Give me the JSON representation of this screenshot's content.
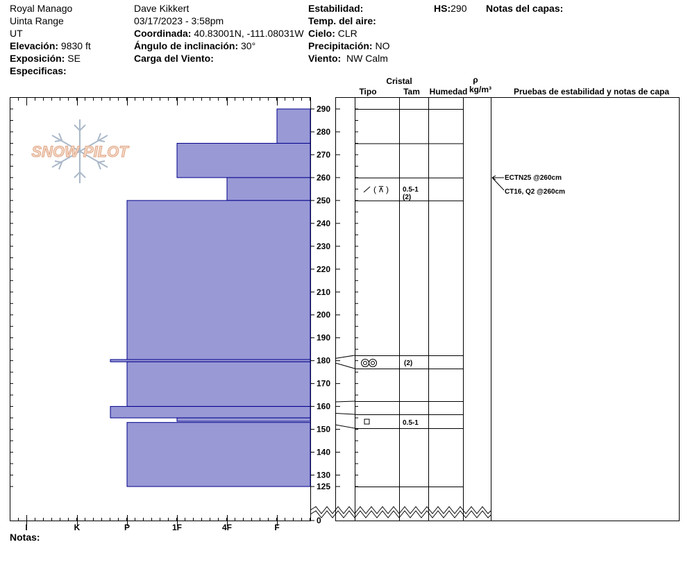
{
  "header": {
    "location": "Royal Manago",
    "range": "Uinta Range",
    "state": "UT",
    "elevation_label": "Elevación:",
    "elevation": "9830 ft",
    "aspect_label": "Exposición:",
    "aspect": "SE",
    "specifics_label": "Especificas:",
    "observer": "Dave Kikkert",
    "datetime": "03/17/2023 - 3:58pm",
    "coord_label": "Coordinada:",
    "coord": "40.83001N, -111.08031W",
    "slope_label": "Ángulo de inclinación:",
    "slope": "30°",
    "wind_loading_label": "Carga del Viento:",
    "stability_label": "Estabilidad:",
    "air_temp_label": "Temp. del aire:",
    "sky_label": "Cielo:",
    "sky": "CLR",
    "precip_label": "Precipitación:",
    "precip": "NO",
    "wind_label": "Viento:",
    "wind": "NW Calm",
    "hs_label": "HS:",
    "hs": "290",
    "layer_notes_label": "Notas del capas:"
  },
  "columns": {
    "crystal": "Cristal",
    "type": "Tipo",
    "size": "Tam",
    "moisture": "Humedad",
    "rho": "ρ",
    "density_unit": "kg/m³",
    "tests": "Pruebas de estabilidad y notas de capa"
  },
  "notes_label": "Notas:",
  "logo_text": "SNOW PILOT",
  "colors": {
    "hardness_fill": "#9999d6",
    "hardness_stroke": "#00008b"
  },
  "chart_data": {
    "type": "bar",
    "y_axis": {
      "range": [
        0,
        295
      ],
      "ticks": [
        0,
        125,
        130,
        140,
        150,
        160,
        170,
        180,
        190,
        200,
        210,
        220,
        230,
        240,
        250,
        260,
        270,
        280,
        290
      ],
      "break_below": 125
    },
    "x_axis": {
      "categories": [
        "I",
        "K",
        "P",
        "1F",
        "4F",
        "F"
      ],
      "reversed": true
    },
    "hardness_layers": [
      {
        "top": 290,
        "bottom": 275,
        "hardness": "F"
      },
      {
        "top": 275,
        "bottom": 260,
        "hardness": "1F"
      },
      {
        "top": 260,
        "bottom": 250,
        "hardness": "4F"
      },
      {
        "top": 250,
        "bottom": 180.5,
        "hardness": "P"
      },
      {
        "top": 180.5,
        "bottom": 179.5,
        "hardness": "K+"
      },
      {
        "top": 179.5,
        "bottom": 160,
        "hardness": "P"
      },
      {
        "top": 160,
        "bottom": 155,
        "hardness": "K+"
      },
      {
        "top": 155,
        "bottom": 153.5,
        "hardness": "1F"
      },
      {
        "top": 153,
        "bottom": 125,
        "hardness": "P"
      }
    ],
    "layer_boundaries": [
      290,
      275,
      260,
      250,
      181,
      179,
      162,
      157,
      152,
      125
    ],
    "layer_details": [
      {
        "at": 255,
        "crystal": "⁄ (⩤)",
        "size": "0.5-1",
        "size2": "(2)"
      },
      {
        "at": 180,
        "crystal": "◎◎",
        "size": "(2)"
      },
      {
        "at": 154,
        "crystal": "□",
        "size": "0.5-1"
      }
    ],
    "stability_tests": [
      {
        "depth": 260,
        "label": "ECTN25 @260cm"
      },
      {
        "depth": 260,
        "label": "CT16, Q2 @260cm"
      }
    ]
  }
}
